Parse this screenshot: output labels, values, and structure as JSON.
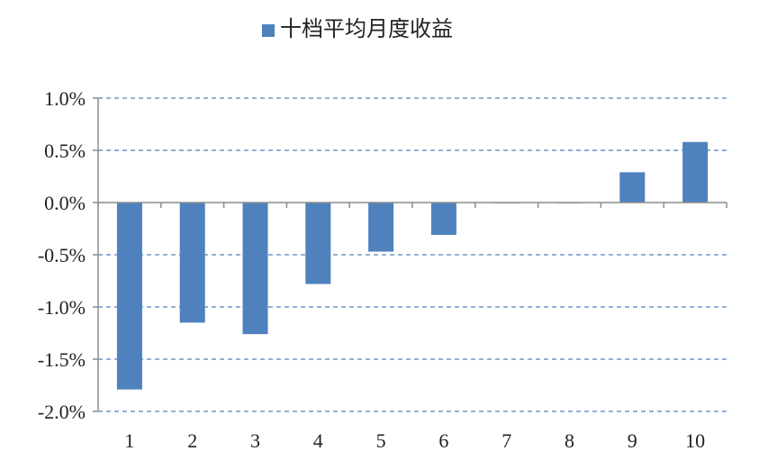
{
  "chart_data": {
    "type": "bar",
    "title": "",
    "xlabel": "",
    "ylabel": "",
    "categories": [
      "1",
      "2",
      "3",
      "4",
      "5",
      "6",
      "7",
      "8",
      "9",
      "10"
    ],
    "series": [
      {
        "name": "十档平均月度收益",
        "color": "#4f81bd",
        "values": [
          -1.79,
          -1.15,
          -1.26,
          -0.78,
          -0.47,
          -0.31,
          0.0,
          0.0,
          0.29,
          0.58
        ]
      }
    ],
    "ylim": [
      -2.0,
      1.0
    ],
    "yticks": [
      1.0,
      0.5,
      0.0,
      -0.5,
      -1.0,
      -1.5,
      -2.0
    ],
    "ytick_labels": [
      "1.0%",
      "0.5%",
      "0.0%",
      "-0.5%",
      "-1.0%",
      "-1.5%",
      "-2.0%"
    ],
    "y_unit": "%",
    "grid": true,
    "grid_style": "dashed",
    "grid_color": "#4f81bd",
    "legend_position": "top-center"
  }
}
